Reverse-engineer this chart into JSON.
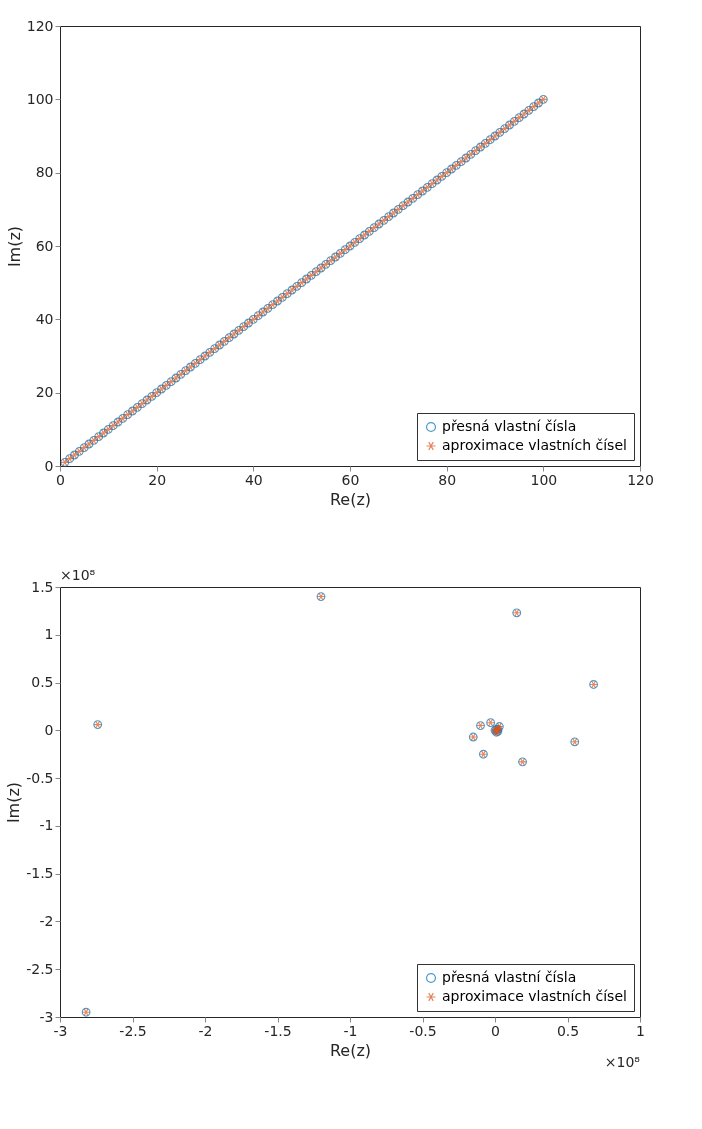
{
  "chart_data": [
    {
      "type": "scatter",
      "xlabel": "Re(z)",
      "ylabel": "Im(z)",
      "xlim": [
        0,
        120
      ],
      "ylim": [
        0,
        120
      ],
      "xticks": [
        0,
        20,
        40,
        60,
        80,
        100,
        120
      ],
      "yticks": [
        0,
        20,
        40,
        60,
        80,
        100,
        120
      ],
      "grid": false,
      "legend": "bottom right",
      "x": [
        1,
        2,
        3,
        4,
        5,
        6,
        7,
        8,
        9,
        10,
        11,
        12,
        13,
        14,
        15,
        16,
        17,
        18,
        19,
        20,
        21,
        22,
        23,
        24,
        25,
        26,
        27,
        28,
        29,
        30,
        31,
        32,
        33,
        34,
        35,
        36,
        37,
        38,
        39,
        40,
        41,
        42,
        43,
        44,
        45,
        46,
        47,
        48,
        49,
        50,
        51,
        52,
        53,
        54,
        55,
        56,
        57,
        58,
        59,
        60,
        61,
        62,
        63,
        64,
        65,
        66,
        67,
        68,
        69,
        70,
        71,
        72,
        73,
        74,
        75,
        76,
        77,
        78,
        79,
        80,
        81,
        82,
        83,
        84,
        85,
        86,
        87,
        88,
        89,
        90,
        91,
        92,
        93,
        94,
        95,
        96,
        97,
        98,
        99,
        100
      ],
      "series": [
        {
          "name": "přesná vlastní čísla",
          "color": "#0072bd",
          "marker": "circle",
          "values": [
            1,
            2,
            3,
            4,
            5,
            6,
            7,
            8,
            9,
            10,
            11,
            12,
            13,
            14,
            15,
            16,
            17,
            18,
            19,
            20,
            21,
            22,
            23,
            24,
            25,
            26,
            27,
            28,
            29,
            30,
            31,
            32,
            33,
            34,
            35,
            36,
            37,
            38,
            39,
            40,
            41,
            42,
            43,
            44,
            45,
            46,
            47,
            48,
            49,
            50,
            51,
            52,
            53,
            54,
            55,
            56,
            57,
            58,
            59,
            60,
            61,
            62,
            63,
            64,
            65,
            66,
            67,
            68,
            69,
            70,
            71,
            72,
            73,
            74,
            75,
            76,
            77,
            78,
            79,
            80,
            81,
            82,
            83,
            84,
            85,
            86,
            87,
            88,
            89,
            90,
            91,
            92,
            93,
            94,
            95,
            96,
            97,
            98,
            99,
            100
          ]
        },
        {
          "name": "aproximace vlastních čísel",
          "color": "#d95319",
          "marker": "cross",
          "values": [
            1,
            2,
            3,
            4,
            5,
            6,
            7,
            8,
            9,
            10,
            11,
            12,
            13,
            14,
            15,
            16,
            17,
            18,
            19,
            20,
            21,
            22,
            23,
            24,
            25,
            26,
            27,
            28,
            29,
            30,
            31,
            32,
            33,
            34,
            35,
            36,
            37,
            38,
            39,
            40,
            41,
            42,
            43,
            44,
            45,
            46,
            47,
            48,
            49,
            50,
            51,
            52,
            53,
            54,
            55,
            56,
            57,
            58,
            59,
            60,
            61,
            62,
            63,
            64,
            65,
            66,
            67,
            68,
            69,
            70,
            71,
            72,
            73,
            74,
            75,
            76,
            77,
            78,
            79,
            80,
            81,
            82,
            83,
            84,
            85,
            86,
            87,
            88,
            89,
            90,
            91,
            92,
            93,
            94,
            95,
            96,
            97,
            98,
            99,
            100
          ]
        }
      ]
    },
    {
      "type": "scatter",
      "xlabel": "Re(z)",
      "ylabel": "Im(z)",
      "xlim": [
        -3,
        1
      ],
      "ylim": [
        -3,
        1.5
      ],
      "grid": false,
      "legend": "bottom right",
      "xticks": [
        -3,
        -2.5,
        -2,
        -1.5,
        -1,
        -0.5,
        0,
        0.5,
        1
      ],
      "yticks": [
        -3,
        -2.5,
        -2,
        -1.5,
        -1,
        -0.5,
        0,
        0.5,
        1,
        1.5
      ],
      "annotations": [
        "×10⁸",
        "×10⁸"
      ],
      "x": [
        -2.74,
        -1.2,
        0.15,
        0.68,
        0.55,
        0.19,
        -0.08,
        -0.15,
        -0.1,
        -0.03,
        0.03,
        0,
        0.01,
        0.02,
        0.01,
        0.02,
        -2.82
      ],
      "series": [
        {
          "name": "přesná vlastní čísla",
          "color": "#0072bd",
          "marker": "circle",
          "values": [
            0.06,
            1.4,
            1.23,
            0.48,
            -0.12,
            -0.33,
            -0.25,
            -0.07,
            0.05,
            0.08,
            0.04,
            0,
            0.01,
            -0.01,
            -0.02,
            0.01,
            -2.95
          ]
        },
        {
          "name": "aproximace vlastních čísel",
          "color": "#d95319",
          "marker": "cross",
          "values": [
            0.06,
            1.4,
            1.23,
            0.48,
            -0.12,
            -0.33,
            -0.25,
            -0.07,
            0.05,
            0.08,
            0.04,
            0,
            0.01,
            -0.01,
            -0.02,
            0.01,
            -2.95
          ]
        }
      ]
    }
  ]
}
